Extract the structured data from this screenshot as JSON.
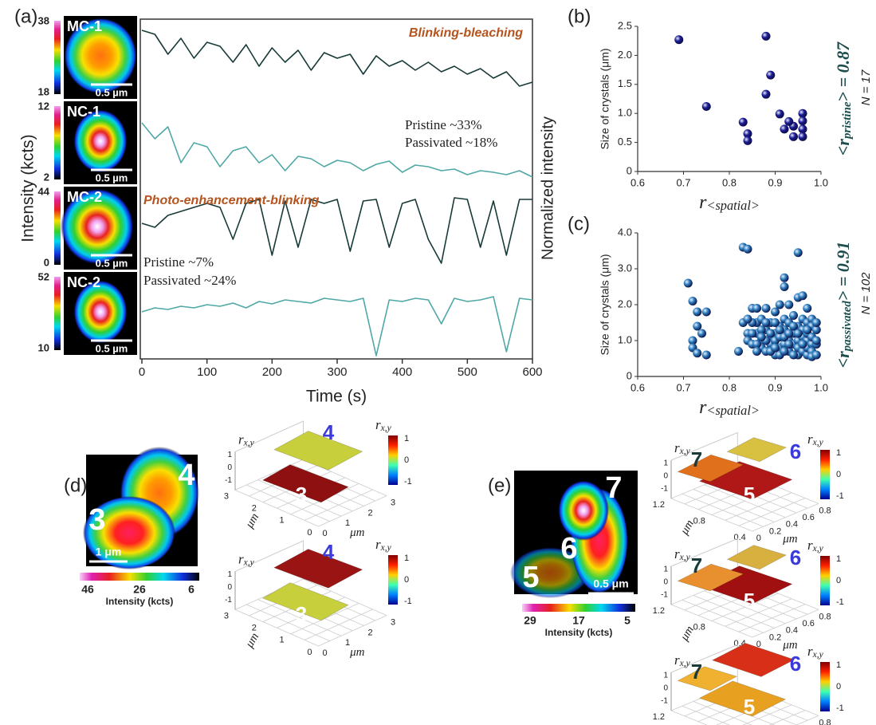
{
  "panel_labels": {
    "a": "(a)",
    "b": "(b)",
    "c": "(c)",
    "d": "(d)",
    "e": "(e)"
  },
  "chart_data": [
    {
      "type": "line",
      "xlabel": "Time (s)",
      "ylabel": "Intensity (kcts)",
      "y2label": "Normalized intensity",
      "xlim": [
        0,
        600
      ],
      "xticks": [
        0,
        100,
        200,
        300,
        400,
        500,
        600
      ],
      "ylim": [
        0,
        1
      ],
      "x": [
        0,
        20,
        40,
        60,
        80,
        100,
        120,
        140,
        160,
        180,
        200,
        220,
        240,
        260,
        280,
        300,
        320,
        340,
        360,
        380,
        400,
        420,
        440,
        460,
        480,
        500,
        520,
        540,
        560,
        580,
        600
      ],
      "series": [
        {
          "name": "MC-1",
          "color": "#173a38",
          "colorbar": [
            38,
            18
          ],
          "scale_bar": "0.5 µm",
          "values": [
            0.9,
            0.85,
            0.6,
            0.8,
            0.55,
            0.75,
            0.7,
            0.5,
            0.72,
            0.45,
            0.68,
            0.5,
            0.65,
            0.4,
            0.62,
            0.55,
            0.6,
            0.35,
            0.58,
            0.45,
            0.52,
            0.4,
            0.5,
            0.38,
            0.45,
            0.35,
            0.42,
            0.3,
            0.38,
            0.2,
            0.25
          ]
        },
        {
          "name": "NC-1",
          "color": "#4fa8a6",
          "colorbar": [
            12,
            2
          ],
          "scale_bar": "0.5 µm",
          "values": [
            0.8,
            0.6,
            0.75,
            0.3,
            0.55,
            0.5,
            0.25,
            0.45,
            0.5,
            0.3,
            0.4,
            0.2,
            0.38,
            0.35,
            0.25,
            0.33,
            0.3,
            0.2,
            0.28,
            0.32,
            0.18,
            0.27,
            0.25,
            0.2,
            0.22,
            0.15,
            0.2,
            0.18,
            0.15,
            0.2,
            0.12
          ]
        },
        {
          "name": "MC-2",
          "color": "#173a38",
          "colorbar": [
            44,
            0
          ],
          "scale_bar": "0.5 µm",
          "values": [
            0.6,
            0.55,
            0.7,
            0.75,
            0.8,
            0.85,
            0.8,
            0.4,
            0.85,
            0.9,
            0.2,
            0.88,
            0.3,
            0.9,
            0.85,
            0.9,
            0.25,
            0.88,
            0.9,
            0.3,
            0.85,
            0.9,
            0.4,
            0.1,
            0.92,
            0.9,
            0.3,
            0.88,
            0.2,
            0.9,
            0.9
          ]
        },
        {
          "name": "NC-2",
          "color": "#4fa8a6",
          "colorbar": [
            52,
            10
          ],
          "scale_bar": "0.5 µm",
          "values": [
            0.55,
            0.6,
            0.58,
            0.62,
            0.6,
            0.64,
            0.62,
            0.66,
            0.6,
            0.68,
            0.65,
            0.7,
            0.68,
            0.66,
            0.72,
            0.7,
            0.68,
            0.72,
            0.0,
            0.7,
            0.68,
            0.72,
            0.7,
            0.4,
            0.72,
            0.68,
            0.7,
            0.74,
            0.05,
            0.72,
            0.7
          ]
        }
      ],
      "annotations": [
        {
          "text": "Blinking-bleaching",
          "color": "#b5541e"
        },
        {
          "text": "Pristine ~33%",
          "color": "#222222"
        },
        {
          "text": "Passivated ~18%",
          "color": "#222222"
        },
        {
          "text": "Photo-enhancement-blinking",
          "color": "#b5541e"
        },
        {
          "text": "Pristine ~7%",
          "color": "#222222"
        },
        {
          "text": "Passivated ~24%",
          "color": "#222222"
        }
      ]
    },
    {
      "type": "scatter",
      "ylabel": "Size of crystals (μm)",
      "xlabel": "r",
      "xlabel_sub": "<spatial>",
      "stat": {
        "prefix": "<r",
        "sub": "pristine",
        "suffix": "> = 0.87"
      },
      "n_label": "N = 17",
      "color": "#1c1c94",
      "xlim": [
        0.6,
        1.0
      ],
      "xticks": [
        0.6,
        0.7,
        0.8,
        0.9,
        {
          "value": 1,
          "label": "1.0"
        }
      ],
      "ylim": [
        0,
        2.5
      ],
      "yticks": [
        0,
        0.5,
        {
          "value": 1,
          "label": "1.0"
        },
        1.5,
        {
          "value": 2,
          "label": "2.0"
        },
        2.5
      ],
      "x": [
        0.69,
        0.75,
        0.83,
        0.84,
        0.84,
        0.88,
        0.89,
        0.88,
        0.91,
        0.92,
        0.94,
        0.94,
        0.96,
        0.96,
        0.96,
        0.96,
        0.93
      ],
      "values": [
        2.27,
        1.12,
        0.85,
        0.65,
        0.53,
        2.33,
        1.66,
        1.33,
        0.99,
        0.73,
        0.78,
        0.6,
        1.0,
        0.87,
        0.73,
        0.6,
        0.86
      ]
    },
    {
      "type": "scatter",
      "ylabel": "Size of crystals (μm)",
      "xlabel": "r",
      "xlabel_sub": "<spatial>",
      "stat": {
        "prefix": "<r",
        "sub": "passivated",
        "suffix": "> = 0.91"
      },
      "n_label": "N = 102",
      "color": "#2f7fbf",
      "xlim": [
        0.6,
        1.0
      ],
      "xticks": [
        0.6,
        0.7,
        0.8,
        0.9,
        {
          "value": 1,
          "label": "1.0"
        }
      ],
      "ylim": [
        0,
        4
      ],
      "yticks": [
        0,
        {
          "value": 1,
          "label": "1.0"
        },
        {
          "value": 2,
          "label": "2.0"
        },
        {
          "value": 3,
          "label": "3.0"
        },
        {
          "value": 4,
          "label": "4.0"
        }
      ],
      "x": [
        0.71,
        0.72,
        0.73,
        0.73,
        0.72,
        0.72,
        0.73,
        0.75,
        0.75,
        0.74,
        0.82,
        0.83,
        0.84,
        0.83,
        0.84,
        0.84,
        0.85,
        0.85,
        0.86,
        0.86,
        0.86,
        0.87,
        0.87,
        0.87,
        0.88,
        0.88,
        0.88,
        0.89,
        0.89,
        0.89,
        0.9,
        0.9,
        0.9,
        0.9,
        0.91,
        0.91,
        0.91,
        0.91,
        0.92,
        0.92,
        0.92,
        0.92,
        0.92,
        0.93,
        0.93,
        0.93,
        0.93,
        0.94,
        0.94,
        0.94,
        0.95,
        0.95,
        0.95,
        0.95,
        0.95,
        0.95,
        0.96,
        0.96,
        0.96,
        0.96,
        0.96,
        0.97,
        0.97,
        0.97,
        0.97,
        0.97,
        0.97,
        0.98,
        0.98,
        0.98,
        0.98,
        0.98,
        0.98,
        0.99,
        0.99,
        0.99,
        0.99,
        0.99,
        0.88,
        0.87,
        0.86,
        0.85,
        0.89,
        0.9,
        0.91,
        0.92,
        0.93,
        0.94,
        0.94,
        0.95,
        0.96,
        0.97,
        0.93,
        0.92,
        0.91,
        0.9,
        0.89,
        0.88,
        0.87,
        0.86,
        0.85,
        0.84
      ],
      "values": [
        2.6,
        2.1,
        1.8,
        1.4,
        1.0,
        0.8,
        0.65,
        1.8,
        0.6,
        1.2,
        0.7,
        3.6,
        3.55,
        1.5,
        1.2,
        1.0,
        0.9,
        1.9,
        1.9,
        1.5,
        1.2,
        1.0,
        0.8,
        1.6,
        1.3,
        1.9,
        0.7,
        1.1,
        0.9,
        1.5,
        1.8,
        1.2,
        0.6,
        1.0,
        1.4,
        0.8,
        2.0,
        1.1,
        2.5,
        2.75,
        1.6,
        0.9,
        1.3,
        2.0,
        1.0,
        0.7,
        1.5,
        1.2,
        0.9,
        1.7,
        3.45,
        2.2,
        1.4,
        1.0,
        0.6,
        0.8,
        2.25,
        1.6,
        1.1,
        0.7,
        1.3,
        1.9,
        1.5,
        1.0,
        0.6,
        0.8,
        1.2,
        1.6,
        1.4,
        0.9,
        0.7,
        1.1,
        0.55,
        1.3,
        0.9,
        0.6,
        1.0,
        1.5,
        1.5,
        1.3,
        0.9,
        1.2,
        0.7,
        1.5,
        0.6,
        1.1,
        1.2,
        0.6,
        1.4,
        1.2,
        0.9,
        1.3,
        0.9,
        0.7,
        1.3,
        0.8,
        1.2,
        1.0,
        1.1,
        0.7,
        1.5,
        1.6
      ]
    }
  ],
  "panel_d": {
    "image": {
      "labels": [
        "3",
        "4"
      ],
      "scale": "1 μm",
      "colorbar": [
        "46",
        "26",
        "6"
      ],
      "colorbar_title": "Intensity (kcts)"
    },
    "surface_axes": {
      "z_label": "r",
      "z_sub": "x,y",
      "unit": "μm",
      "xticks": [
        "0",
        "1",
        "2",
        "3"
      ],
      "yticks": [
        "0",
        "1",
        "2",
        "3"
      ],
      "zticks": [
        "1",
        "0",
        "-1"
      ],
      "colorbar": [
        "1",
        "0",
        "-1"
      ]
    },
    "surfaces": [
      {
        "labels": [
          "4",
          "3"
        ]
      },
      {
        "labels": [
          "4",
          "3"
        ]
      }
    ]
  },
  "panel_e": {
    "image": {
      "labels": [
        "7",
        "6",
        "5"
      ],
      "scale": "0.5 μm",
      "colorbar": [
        "29",
        "17",
        "5"
      ],
      "colorbar_title": "Intensity (kcts)"
    },
    "surface_axes": {
      "z_label": "r",
      "z_sub": "x,y",
      "unit": "μm",
      "xticks": [
        "0",
        "0.2",
        "0.4",
        "0.6",
        "0.8"
      ],
      "yticks": [
        "0.4",
        "0.8",
        "1.2"
      ],
      "zticks": [
        "1",
        "0",
        "-1"
      ],
      "colorbar": [
        "1",
        "0",
        "-1"
      ]
    },
    "surfaces": [
      {
        "labels": [
          "7",
          "6",
          "5"
        ]
      },
      {
        "labels": [
          "7",
          "6",
          "5"
        ]
      },
      {
        "labels": [
          "7",
          "6",
          "5"
        ]
      }
    ]
  }
}
